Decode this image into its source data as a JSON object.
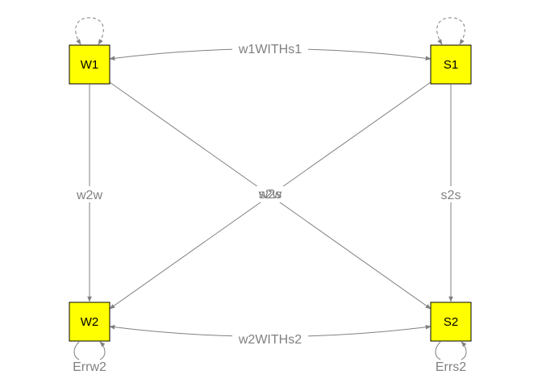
{
  "nodes": {
    "w1": {
      "label": "W1"
    },
    "s1": {
      "label": "S1"
    },
    "w2": {
      "label": "W2"
    },
    "s2": {
      "label": "S2"
    }
  },
  "edges": {
    "w1_with_s1": "w1WITHs1",
    "w2_with_s2": "w2WITHs2",
    "w1_to_w2": "w2w",
    "s1_to_s2": "s2s",
    "w1_to_s2": "w2s",
    "s1_to_w2": "s2w"
  },
  "residuals": {
    "w2": "Errw2",
    "s2": "Errs2"
  },
  "colors": {
    "node_fill": "#ffff00",
    "edge": "#808080"
  }
}
